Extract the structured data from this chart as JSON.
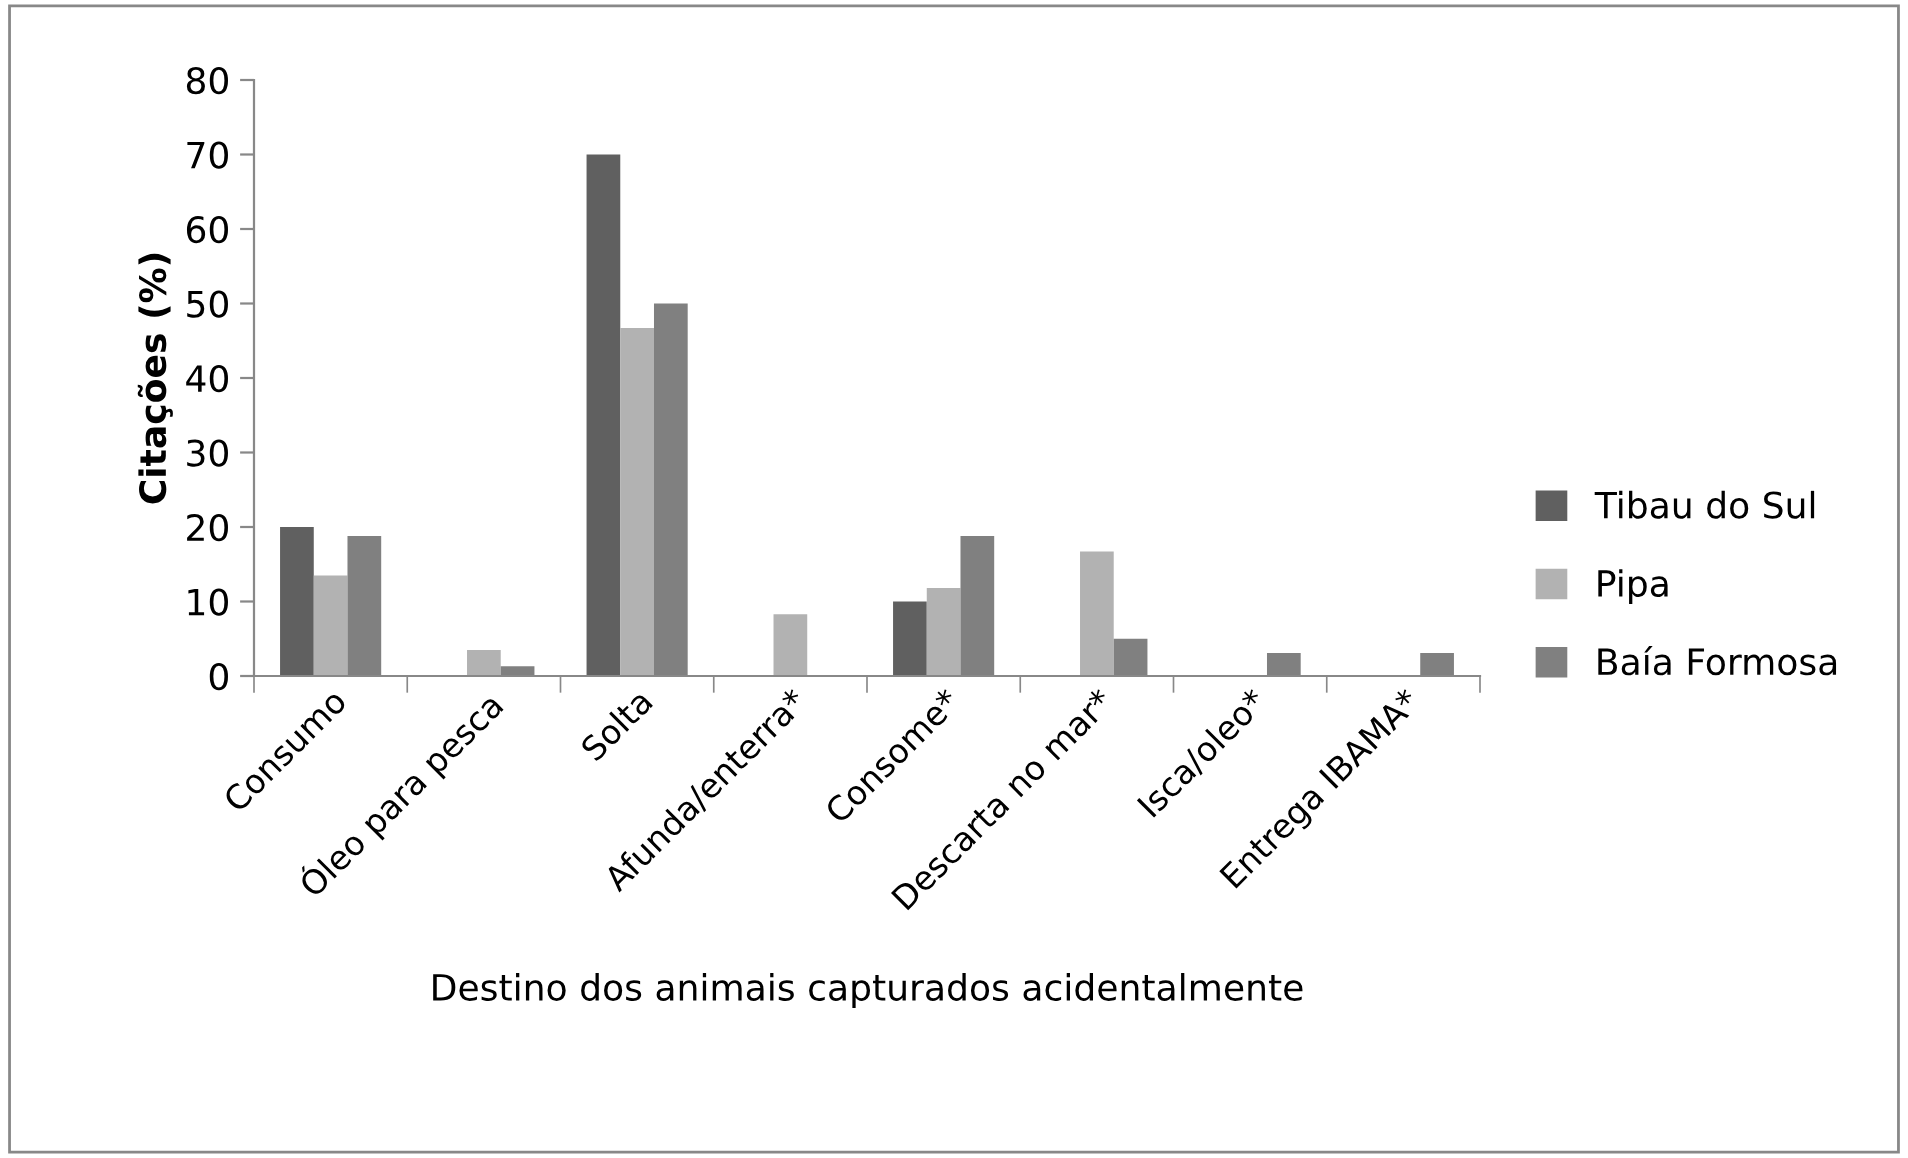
{
  "chart_data": {
    "type": "bar",
    "xlabel": "Destino dos animais capturados acidentalmente",
    "ylabel": "Citações (%)",
    "categories": [
      "Consumo",
      "Óleo para pesca",
      "Solta",
      "Afunda/enterra*",
      "Consome*",
      "Descarta no mar*",
      "Isca/oleo*",
      "Entrega IBAMA*"
    ],
    "series": [
      {
        "name": "Tibau do Sul",
        "color": "#606060",
        "values": [
          20,
          0,
          70,
          0,
          10,
          0,
          0,
          0
        ]
      },
      {
        "name": "Pipa",
        "color": "#b2b2b2",
        "values": [
          13.5,
          3.5,
          46.7,
          8.3,
          11.8,
          16.7,
          0,
          0
        ]
      },
      {
        "name": "Baía Formosa",
        "color": "#808080",
        "values": [
          18.8,
          1.3,
          50,
          0,
          18.8,
          5,
          3.1,
          3.1
        ]
      }
    ],
    "ylim": [
      0,
      80
    ],
    "yticks": [
      0,
      10,
      20,
      30,
      40,
      50,
      60,
      70,
      80
    ],
    "grid": false,
    "legend": "right"
  }
}
